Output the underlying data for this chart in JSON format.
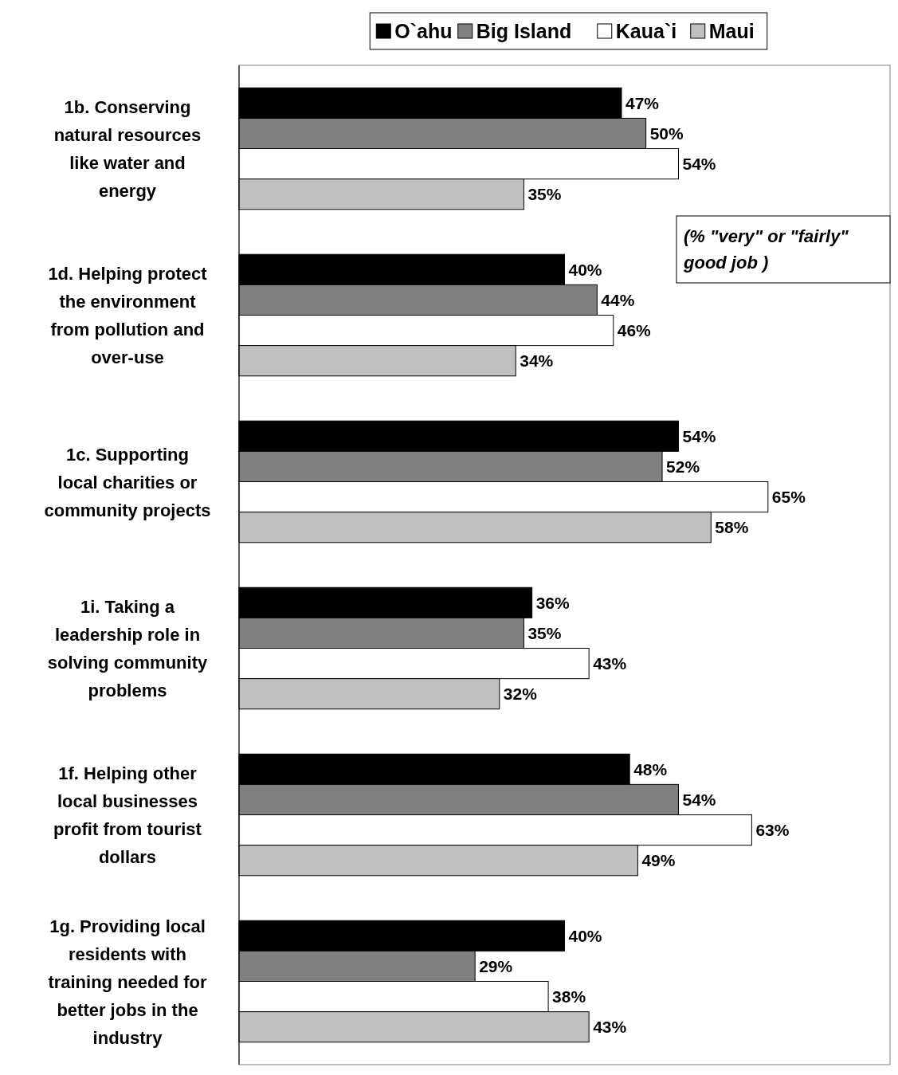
{
  "chart_data": {
    "type": "bar",
    "orientation": "horizontal",
    "categories": [
      "1b. Conserving natural resources like water and energy",
      "1d. Helping protect the environment from pollution and over-use",
      "1c. Supporting local charities or community projects",
      "1i. Taking a leadership role in solving community problems",
      "1f. Helping other local businesses profit from tourist dollars",
      "1g. Providing local residents with training needed for better jobs in the industry"
    ],
    "series": [
      {
        "name": "O`ahu",
        "color": "#000000",
        "values": [
          47,
          40,
          54,
          36,
          48,
          40
        ],
        "value_labels": [
          "47%",
          "40%",
          "54%",
          "36%",
          "48%",
          "40%"
        ]
      },
      {
        "name": "Big Island",
        "color": "#808080",
        "values": [
          50,
          44,
          52,
          35,
          54,
          29
        ],
        "value_labels": [
          "50%",
          "44%",
          "52%",
          "35%",
          "54%",
          "29%"
        ]
      },
      {
        "name": "Kaua`i",
        "color": "#ffffff",
        "values": [
          54,
          46,
          65,
          43,
          63,
          38
        ],
        "value_labels": [
          "54%",
          "46%",
          "65%",
          "43%",
          "63%",
          "38%"
        ]
      },
      {
        "name": "Maui",
        "color": "#c0c0c0",
        "values": [
          35,
          34,
          58,
          32,
          49,
          43
        ],
        "value_labels": [
          "35%",
          "34%",
          "58%",
          "32%",
          "49%",
          "43%"
        ]
      }
    ],
    "xlim": [
      0,
      80
    ],
    "tick_labels": "y",
    "legend": "top",
    "grid": false,
    "annotations": [
      "(% \"very\" or \"fairly\" good job )"
    ]
  }
}
